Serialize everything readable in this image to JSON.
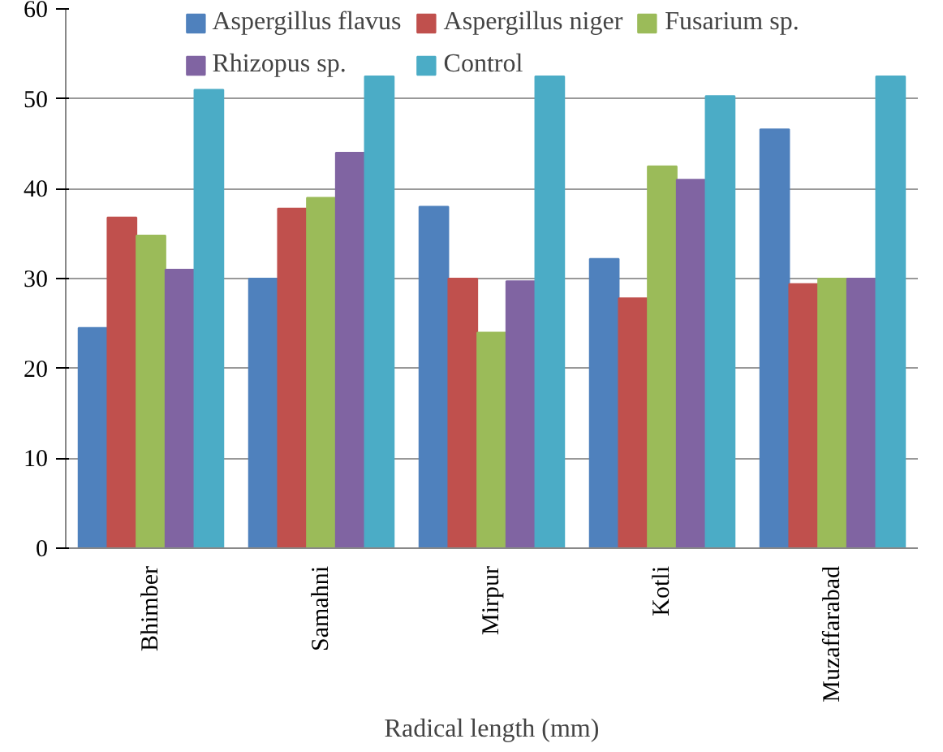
{
  "chart_data": {
    "type": "bar",
    "xlabel": "Radical length (mm)",
    "categories": [
      "Bhimber",
      "Samahni",
      "Mirpur",
      "Kotli",
      "Muzaffarabad"
    ],
    "series": [
      {
        "name": "Aspergillus flavus",
        "color": "#4f81bd",
        "values": [
          24.5,
          30,
          38,
          32.2,
          46.6
        ]
      },
      {
        "name": "Aspergillus niger",
        "color": "#c0504d",
        "values": [
          36.8,
          37.8,
          30,
          27.8,
          29.4
        ]
      },
      {
        "name": "Fusarium sp.",
        "color": "#9bbb59",
        "values": [
          34.8,
          39,
          24,
          42.5,
          30
        ]
      },
      {
        "name": "Rhizopus sp.",
        "color": "#8064a2",
        "values": [
          31,
          44,
          29.7,
          41,
          30
        ]
      },
      {
        "name": "Control",
        "color": "#4bacc6",
        "values": [
          51,
          52.5,
          52.5,
          50.3,
          52.5
        ]
      }
    ],
    "ylim": [
      0,
      60
    ],
    "yticks": [
      0,
      10,
      20,
      30,
      40,
      50,
      60
    ],
    "grid": "y",
    "legend": "top"
  }
}
